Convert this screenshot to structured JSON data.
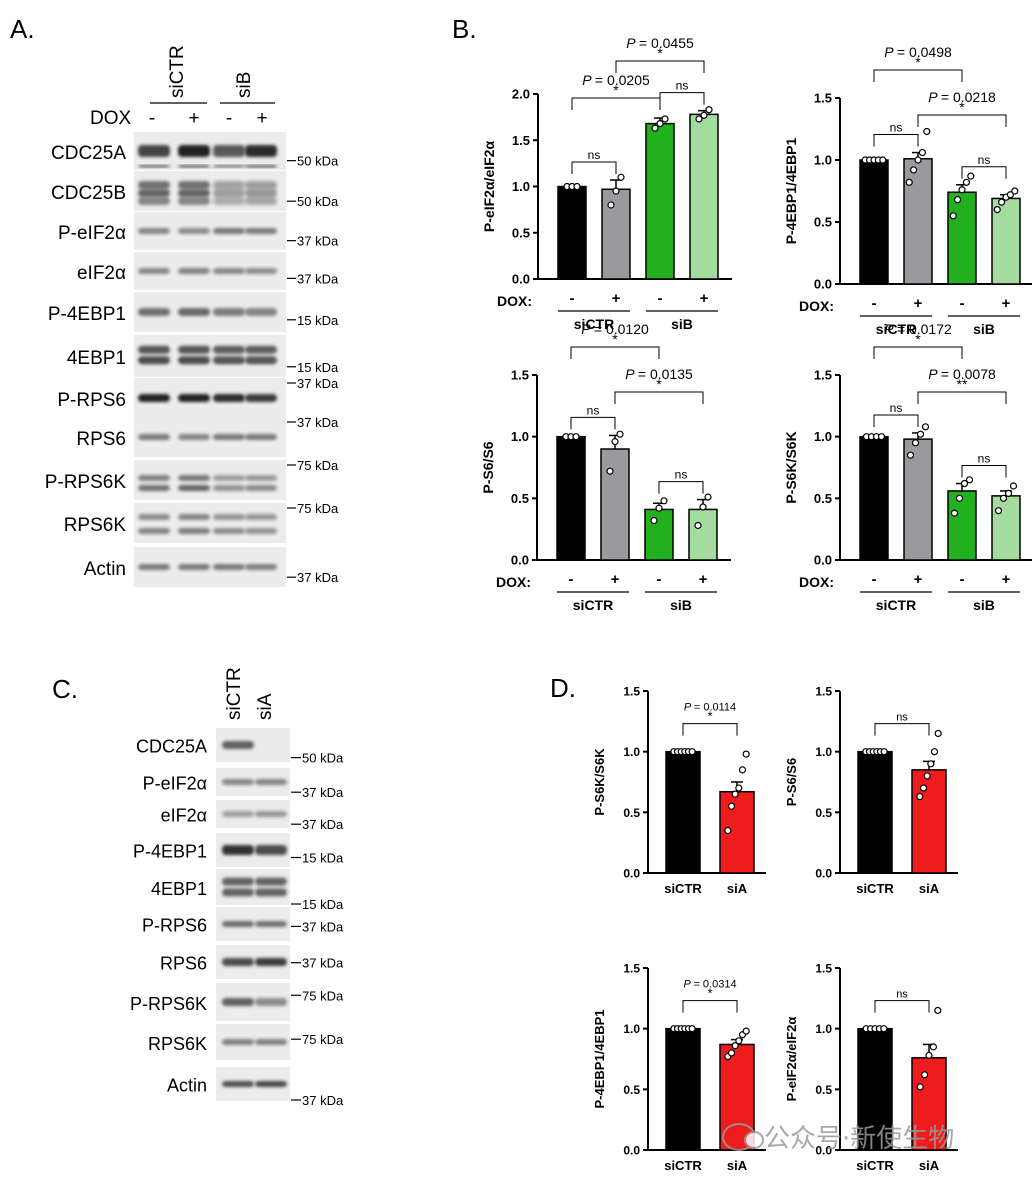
{
  "panels": {
    "A": {
      "letter": "A.",
      "groups": [
        "siCTR",
        "siB"
      ],
      "treatment_label": "DOX",
      "treatment_signs": [
        "-",
        "+",
        "-",
        "+"
      ],
      "blots": [
        {
          "label": "CDC25A",
          "marker": "50 kDa"
        },
        {
          "label": "CDC25B",
          "marker": "50 kDa"
        },
        {
          "label": "P-eIF2α",
          "marker": "37 kDa"
        },
        {
          "label": "eIF2α",
          "marker": "37 kDa"
        },
        {
          "label": "P-4EBP1",
          "marker": "15 kDa"
        },
        {
          "label": "4EBP1",
          "marker": "15 kDa"
        },
        {
          "label": "P-RPS6",
          "marker": "37 kDa"
        },
        {
          "label": "RPS6",
          "marker": "37 kDa"
        },
        {
          "label": "P-RPS6K",
          "marker": "75 kDa"
        },
        {
          "label": "RPS6K",
          "marker": "75 kDa"
        },
        {
          "label": "Actin",
          "marker": "37 kDa"
        }
      ]
    },
    "B": {
      "letter": "B."
    },
    "C": {
      "letter": "C.",
      "lanes": [
        "siCTR",
        "siA"
      ],
      "blots": [
        {
          "label": "CDC25A",
          "marker": "50 kDa"
        },
        {
          "label": "P-eIF2α",
          "marker": "37 kDa"
        },
        {
          "label": "eIF2α",
          "marker": "37 kDa"
        },
        {
          "label": "P-4EBP1",
          "marker": "15 kDa"
        },
        {
          "label": "4EBP1",
          "marker": "15 kDa"
        },
        {
          "label": "P-RPS6",
          "marker": "37 kDa"
        },
        {
          "label": "RPS6",
          "marker": "37 kDa"
        },
        {
          "label": "P-RPS6K",
          "marker": "75 kDa"
        },
        {
          "label": "RPS6K",
          "marker": "75 kDa"
        },
        {
          "label": "Actin",
          "marker": "37 kDa"
        }
      ]
    },
    "D": {
      "letter": "D."
    }
  },
  "watermark": "公众号·新使生物",
  "chart_data": [
    {
      "id": "B1",
      "type": "bar",
      "ylabel": "P-eIF2α/eIF2α",
      "ylim": [
        0,
        2.0
      ],
      "yticks": [
        "0.0",
        "0.5",
        "1.0",
        "1.5",
        "2.0"
      ],
      "treatment_label": "DOX:",
      "signs": [
        "-",
        "+",
        "-",
        "+"
      ],
      "groups": [
        "siCTR",
        "siB"
      ],
      "values": [
        1.0,
        0.97,
        1.68,
        1.78
      ],
      "errors": [
        0.0,
        0.1,
        0.06,
        0.04
      ],
      "colors": [
        "#000000",
        "#9a9a9e",
        "#22b01e",
        "#a4dca0"
      ],
      "points": [
        [
          1.0,
          1.0,
          1.0
        ],
        [
          0.8,
          0.95,
          1.1
        ],
        [
          1.63,
          1.68,
          1.73
        ],
        [
          1.73,
          1.77,
          1.83
        ]
      ],
      "comparisons": [
        {
          "from": 0,
          "to": 1,
          "label": "ns"
        },
        {
          "from": 2,
          "to": 3,
          "label": "ns"
        },
        {
          "from": 0,
          "to": 2,
          "label": "*",
          "p": "= 0.0205"
        },
        {
          "from": 1,
          "to": 3,
          "label": "*",
          "p": "= 0.0455"
        }
      ]
    },
    {
      "id": "B2",
      "type": "bar",
      "ylabel": "P-4EBP1/4EBP1",
      "ylim": [
        0,
        1.5
      ],
      "yticks": [
        "0.0",
        "0.5",
        "1.0",
        "1.5"
      ],
      "treatment_label": "DOX:",
      "signs": [
        "-",
        "+",
        "-",
        "+"
      ],
      "groups": [
        "siCTR",
        "siB"
      ],
      "values": [
        1.0,
        1.01,
        0.74,
        0.69
      ],
      "errors": [
        0.0,
        0.05,
        0.06,
        0.03
      ],
      "colors": [
        "#000000",
        "#9a9a9e",
        "#22b01e",
        "#a4dca0"
      ],
      "points": [
        [
          1.0,
          1.0,
          1.0,
          1.0,
          1.0
        ],
        [
          0.82,
          0.92,
          1.0,
          1.06,
          1.23
        ],
        [
          0.55,
          0.68,
          0.76,
          0.82,
          0.87
        ],
        [
          0.6,
          0.66,
          0.7,
          0.72,
          0.75
        ]
      ],
      "comparisons": [
        {
          "from": 0,
          "to": 1,
          "label": "ns"
        },
        {
          "from": 2,
          "to": 3,
          "label": "ns"
        },
        {
          "from": 1,
          "to": 3,
          "label": "*",
          "p": "= 0.0218"
        },
        {
          "from": 0,
          "to": 2,
          "label": "*",
          "p": "= 0.0498"
        }
      ]
    },
    {
      "id": "B3",
      "type": "bar",
      "ylabel": "P-S6/S6",
      "ylim": [
        0,
        1.5
      ],
      "yticks": [
        "0.0",
        "0.5",
        "1.0",
        "1.5"
      ],
      "treatment_label": "DOX:",
      "signs": [
        "-",
        "+",
        "-",
        "+"
      ],
      "groups": [
        "siCTR",
        "siB"
      ],
      "values": [
        1.0,
        0.9,
        0.41,
        0.41
      ],
      "errors": [
        0.0,
        0.11,
        0.05,
        0.08
      ],
      "colors": [
        "#000000",
        "#9a9a9e",
        "#22b01e",
        "#a4dca0"
      ],
      "points": [
        [
          1.0,
          1.0,
          1.0
        ],
        [
          0.72,
          0.96,
          1.02
        ],
        [
          0.32,
          0.42,
          0.48
        ],
        [
          0.28,
          0.43,
          0.51
        ]
      ],
      "comparisons": [
        {
          "from": 0,
          "to": 1,
          "label": "ns"
        },
        {
          "from": 2,
          "to": 3,
          "label": "ns"
        },
        {
          "from": 1,
          "to": 3,
          "label": "*",
          "p": "= 0.0135"
        },
        {
          "from": 0,
          "to": 2,
          "label": "*",
          "p": "= 0.0120"
        }
      ]
    },
    {
      "id": "B4",
      "type": "bar",
      "ylabel": "P-S6K/S6K",
      "ylim": [
        0,
        1.5
      ],
      "yticks": [
        "0.0",
        "0.5",
        "1.0",
        "1.5"
      ],
      "treatment_label": "DOX:",
      "signs": [
        "-",
        "+",
        "-",
        "+"
      ],
      "groups": [
        "siCTR",
        "siB"
      ],
      "values": [
        1.0,
        0.98,
        0.56,
        0.52
      ],
      "errors": [
        0.0,
        0.05,
        0.06,
        0.04
      ],
      "colors": [
        "#000000",
        "#9a9a9e",
        "#22b01e",
        "#a4dca0"
      ],
      "points": [
        [
          1.0,
          1.0,
          1.0,
          1.0
        ],
        [
          0.85,
          0.95,
          1.02,
          1.08
        ],
        [
          0.38,
          0.5,
          0.62,
          0.65
        ],
        [
          0.4,
          0.5,
          0.54,
          0.6
        ]
      ],
      "comparisons": [
        {
          "from": 0,
          "to": 1,
          "label": "ns"
        },
        {
          "from": 2,
          "to": 3,
          "label": "ns"
        },
        {
          "from": 1,
          "to": 3,
          "label": "**",
          "p": "= 0.0078"
        },
        {
          "from": 0,
          "to": 2,
          "label": "*",
          "p": "= 0.0172"
        }
      ]
    },
    {
      "id": "D1",
      "type": "bar",
      "ylabel": "P-S6K/S6K",
      "ylim": [
        0,
        1.5
      ],
      "yticks": [
        "0.0",
        "0.5",
        "1.0",
        "1.5"
      ],
      "categories": [
        "siCTR",
        "siA"
      ],
      "values": [
        1.0,
        0.67
      ],
      "errors": [
        0.0,
        0.08
      ],
      "colors": [
        "#000000",
        "#ee1c1c"
      ],
      "points": [
        [
          1.0,
          1.0,
          1.0,
          1.0,
          1.0,
          1.0
        ],
        [
          0.35,
          0.55,
          0.65,
          0.7,
          0.85,
          0.98
        ]
      ],
      "comparisons": [
        {
          "from": 0,
          "to": 1,
          "label": "*",
          "p": "= 0.0114"
        }
      ]
    },
    {
      "id": "D2",
      "type": "bar",
      "ylabel": "P-S6/S6",
      "ylim": [
        0,
        1.5
      ],
      "yticks": [
        "0.0",
        "0.5",
        "1.0",
        "1.5"
      ],
      "categories": [
        "siCTR",
        "siA"
      ],
      "values": [
        1.0,
        0.85
      ],
      "errors": [
        0.0,
        0.07
      ],
      "colors": [
        "#000000",
        "#ee1c1c"
      ],
      "points": [
        [
          1.0,
          1.0,
          1.0,
          1.0,
          1.0,
          1.0
        ],
        [
          0.63,
          0.7,
          0.8,
          0.9,
          1.0,
          1.15
        ]
      ],
      "comparisons": [
        {
          "from": 0,
          "to": 1,
          "label": "ns"
        }
      ]
    },
    {
      "id": "D3",
      "type": "bar",
      "ylabel": "P-4EBP1/4EBP1",
      "ylim": [
        0,
        1.5
      ],
      "yticks": [
        "0.0",
        "0.5",
        "1.0",
        "1.5"
      ],
      "categories": [
        "siCTR",
        "siA"
      ],
      "values": [
        1.0,
        0.87
      ],
      "errors": [
        0.0,
        0.04
      ],
      "colors": [
        "#000000",
        "#ee1c1c"
      ],
      "points": [
        [
          1.0,
          1.0,
          1.0,
          1.0,
          1.0,
          1.0
        ],
        [
          0.77,
          0.8,
          0.86,
          0.9,
          0.95,
          0.98
        ]
      ],
      "comparisons": [
        {
          "from": 0,
          "to": 1,
          "label": "*",
          "p": "= 0.0314"
        }
      ]
    },
    {
      "id": "D4",
      "type": "bar",
      "ylabel": "P-eIF2α/eIF2α",
      "ylim": [
        0,
        1.5
      ],
      "yticks": [
        "0.0",
        "0.5",
        "1.0",
        "1.5"
      ],
      "categories": [
        "siCTR",
        "siA"
      ],
      "values": [
        1.0,
        0.76
      ],
      "errors": [
        0.0,
        0.11
      ],
      "colors": [
        "#000000",
        "#ee1c1c"
      ],
      "points": [
        [
          1.0,
          1.0,
          1.0,
          1.0,
          1.0
        ],
        [
          0.52,
          0.62,
          0.78,
          0.85,
          1.15
        ]
      ],
      "comparisons": [
        {
          "from": 0,
          "to": 1,
          "label": "ns"
        }
      ]
    }
  ]
}
